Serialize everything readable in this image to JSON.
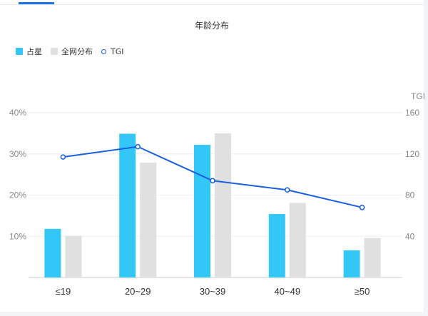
{
  "chart_data": {
    "type": "bar",
    "title": "年龄分布",
    "categories": [
      "≤19",
      "20~29",
      "30~39",
      "40~49",
      "≥50"
    ],
    "series": [
      {
        "name": "占星",
        "kind": "bar",
        "axis": "left",
        "color": "#33c7f7",
        "values": [
          11.8,
          34.9,
          32.2,
          15.4,
          6.6
        ]
      },
      {
        "name": "全网分布",
        "kind": "bar",
        "axis": "left",
        "color": "#e0e0e0",
        "values": [
          10.1,
          27.9,
          35.0,
          18.1,
          9.6
        ]
      },
      {
        "name": "TGI",
        "kind": "line",
        "axis": "right",
        "color": "#1a5fe0",
        "values": [
          117,
          127,
          94,
          85,
          68
        ]
      }
    ],
    "y_left": {
      "min": 0,
      "max": 40,
      "ticks": [
        "10%",
        "20%",
        "30%",
        "40%"
      ],
      "tick_values": [
        10,
        20,
        30,
        40
      ]
    },
    "y_right": {
      "label": "TGI",
      "min": 0,
      "max": 160,
      "ticks": [
        "40",
        "80",
        "120",
        "160"
      ],
      "tick_values": [
        40,
        80,
        120,
        160
      ]
    },
    "grid": true,
    "legend_position": "top-left"
  }
}
